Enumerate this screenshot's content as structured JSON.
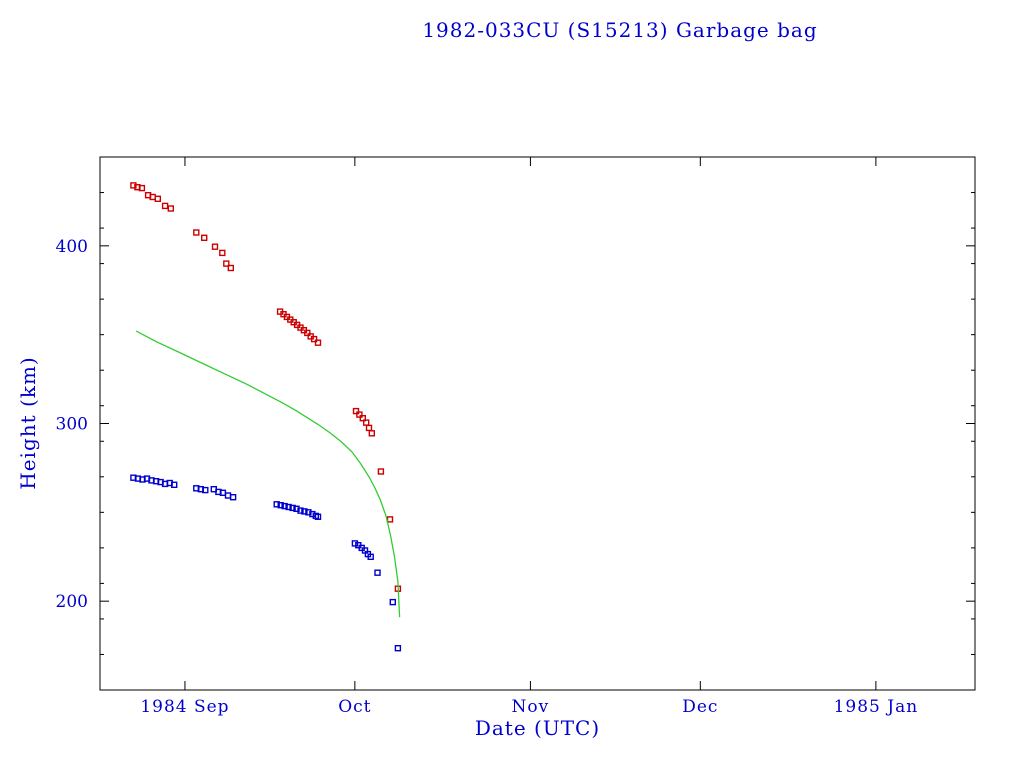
{
  "chart_data": {
    "type": "scatter",
    "title": "1982-033CU (S15213) Garbage bag",
    "xlabel": "Date (UTC)",
    "ylabel": "Height (km)",
    "x_unit": "days since 1984 Sep 1",
    "xlim": [
      -15,
      139.5
    ],
    "ylim": [
      150,
      450
    ],
    "grid": false,
    "legend": "none",
    "x_ticks": [
      {
        "day": 0,
        "label": "1984 Sep"
      },
      {
        "day": 30,
        "label": "Oct"
      },
      {
        "day": 61,
        "label": "Nov"
      },
      {
        "day": 91,
        "label": "Dec"
      },
      {
        "day": 122,
        "label": "1985 Jan"
      }
    ],
    "y_ticks": [
      {
        "value": 200,
        "label": "200"
      },
      {
        "value": 300,
        "label": "300"
      },
      {
        "value": 400,
        "label": "400"
      }
    ],
    "y_minor_step": 20,
    "colors": {
      "background": "#ffffff",
      "axis": "#000000",
      "text": "#0000cd",
      "apogee": "#cc0000",
      "perigee": "#0000cc",
      "mean": "#33cc33"
    },
    "series": [
      {
        "name": "apogee-height",
        "style": "square",
        "color": "#cc0000",
        "points": [
          [
            -9.1,
            434
          ],
          [
            -8.4,
            433
          ],
          [
            -7.6,
            432.5
          ],
          [
            -6.5,
            428.5
          ],
          [
            -5.7,
            427.5
          ],
          [
            -4.8,
            426.5
          ],
          [
            -3.5,
            422.5
          ],
          [
            -2.5,
            421
          ],
          [
            2.0,
            407.5
          ],
          [
            3.4,
            404.5
          ],
          [
            5.3,
            399.5
          ],
          [
            6.6,
            396
          ],
          [
            7.3,
            390
          ],
          [
            8.1,
            387.5
          ],
          [
            16.8,
            363
          ],
          [
            17.4,
            361.5
          ],
          [
            18.0,
            360
          ],
          [
            18.6,
            358.5
          ],
          [
            19.2,
            357
          ],
          [
            19.8,
            355.5
          ],
          [
            20.4,
            354
          ],
          [
            21.0,
            352.5
          ],
          [
            21.6,
            351
          ],
          [
            22.2,
            349
          ],
          [
            22.8,
            347.5
          ],
          [
            23.5,
            345.5
          ],
          [
            30.2,
            307
          ],
          [
            30.8,
            305
          ],
          [
            31.4,
            303
          ],
          [
            32.0,
            300.5
          ],
          [
            32.5,
            297.5
          ],
          [
            33.0,
            294.5
          ],
          [
            34.6,
            273
          ],
          [
            36.2,
            246
          ],
          [
            37.6,
            207
          ]
        ]
      },
      {
        "name": "perigee-height",
        "style": "square",
        "color": "#0000cc",
        "points": [
          [
            -9.1,
            269.5
          ],
          [
            -8.3,
            269
          ],
          [
            -7.5,
            268.5
          ],
          [
            -6.7,
            269
          ],
          [
            -5.9,
            268
          ],
          [
            -5.1,
            267.5
          ],
          [
            -4.3,
            267
          ],
          [
            -3.5,
            266
          ],
          [
            -2.7,
            266.5
          ],
          [
            -1.9,
            265.5
          ],
          [
            2.0,
            263.5
          ],
          [
            2.8,
            263
          ],
          [
            3.6,
            262.5
          ],
          [
            5.1,
            263
          ],
          [
            5.9,
            261.5
          ],
          [
            6.7,
            261
          ],
          [
            7.6,
            259.5
          ],
          [
            8.5,
            258.5
          ],
          [
            16.2,
            254.5
          ],
          [
            16.9,
            254
          ],
          [
            17.6,
            253.5
          ],
          [
            18.3,
            253
          ],
          [
            19.0,
            252.5
          ],
          [
            19.7,
            252
          ],
          [
            20.4,
            251
          ],
          [
            21.1,
            250.5
          ],
          [
            21.8,
            250
          ],
          [
            22.5,
            249
          ],
          [
            23.1,
            248
          ],
          [
            23.5,
            247.5
          ],
          [
            30.0,
            232.5
          ],
          [
            30.6,
            231.5
          ],
          [
            31.2,
            230
          ],
          [
            31.8,
            228.5
          ],
          [
            32.3,
            226.5
          ],
          [
            32.8,
            225
          ],
          [
            34.0,
            216
          ],
          [
            36.7,
            199.5
          ],
          [
            37.6,
            173.5
          ]
        ]
      },
      {
        "name": "mean-height",
        "style": "line",
        "color": "#33cc33",
        "points": [
          [
            -8.6,
            352
          ],
          [
            -5,
            346
          ],
          [
            -1,
            340
          ],
          [
            3,
            334
          ],
          [
            7,
            328
          ],
          [
            11,
            322
          ],
          [
            14,
            317
          ],
          [
            17,
            312
          ],
          [
            19.5,
            307.5
          ],
          [
            21.5,
            303.5
          ],
          [
            23.5,
            299.5
          ],
          [
            25.5,
            295
          ],
          [
            27.5,
            290
          ],
          [
            29.5,
            284
          ],
          [
            31,
            277.5
          ],
          [
            32.5,
            270
          ],
          [
            33.5,
            264
          ],
          [
            34.5,
            257
          ],
          [
            35.5,
            248
          ],
          [
            36.3,
            237
          ],
          [
            37,
            225
          ],
          [
            37.6,
            211
          ],
          [
            37.9,
            191
          ]
        ]
      }
    ]
  }
}
